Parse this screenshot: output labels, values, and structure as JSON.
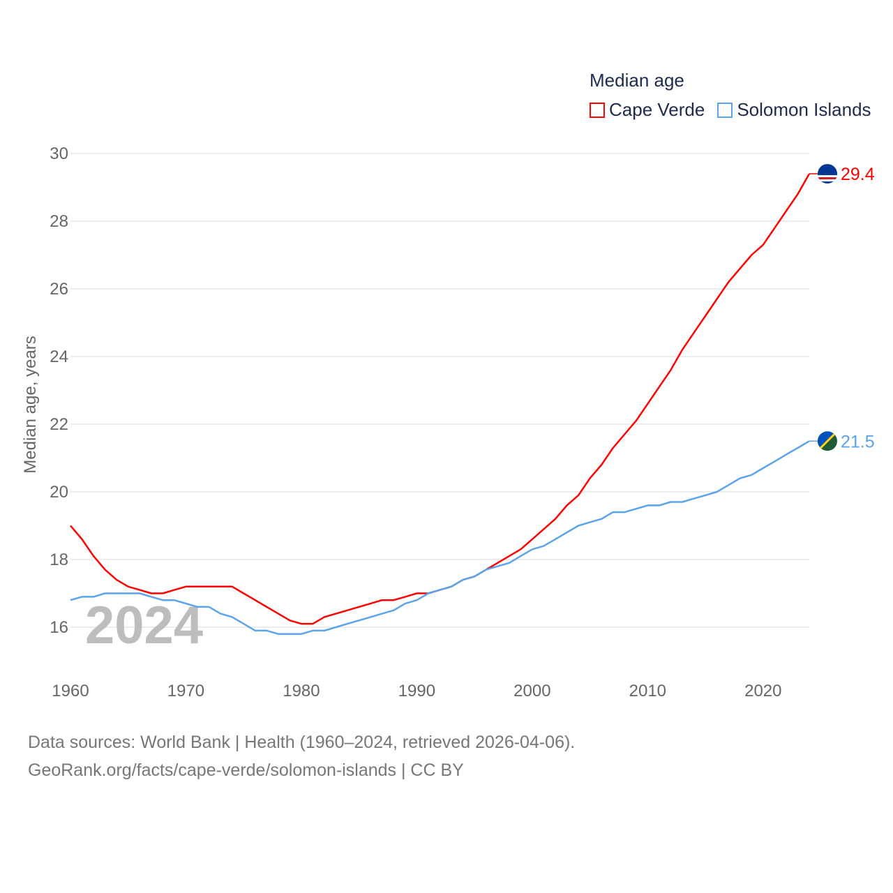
{
  "chart_data": {
    "type": "line",
    "title": "Median age",
    "xlabel": "",
    "ylabel": "Median age, years",
    "xlim": [
      1960,
      2024
    ],
    "ylim": [
      15,
      30
    ],
    "yticks": [
      16,
      18,
      20,
      22,
      24,
      26,
      28,
      30
    ],
    "xticks": [
      1960,
      1970,
      1980,
      1990,
      2000,
      2010,
      2020
    ],
    "grid": true,
    "legend_position": "top-right",
    "watermark_year": "2024",
    "x_start": 1960,
    "series": [
      {
        "name": "Cape Verde",
        "color": "#ff0000",
        "end_label": "29.4",
        "values": [
          19.0,
          18.6,
          18.1,
          17.7,
          17.4,
          17.2,
          17.1,
          17.0,
          17.0,
          17.1,
          17.2,
          17.2,
          17.2,
          17.2,
          17.2,
          17.0,
          16.8,
          16.6,
          16.4,
          16.2,
          16.1,
          16.1,
          16.3,
          16.4,
          16.5,
          16.6,
          16.7,
          16.8,
          16.8,
          16.9,
          17.0,
          17.0,
          17.1,
          17.2,
          17.4,
          17.5,
          17.7,
          17.9,
          18.1,
          18.3,
          18.6,
          18.9,
          19.2,
          19.6,
          19.9,
          20.4,
          20.8,
          21.3,
          21.7,
          22.1,
          22.6,
          23.1,
          23.6,
          24.2,
          24.7,
          25.2,
          25.7,
          26.2,
          26.6,
          27.0,
          27.3,
          27.8,
          28.3,
          28.8,
          29.4
        ]
      },
      {
        "name": "Solomon Islands",
        "color": "#5ba4ec",
        "end_label": "21.5",
        "values": [
          16.8,
          16.9,
          16.9,
          17.0,
          17.0,
          17.0,
          17.0,
          16.9,
          16.8,
          16.8,
          16.7,
          16.6,
          16.6,
          16.4,
          16.3,
          16.1,
          15.9,
          15.9,
          15.8,
          15.8,
          15.8,
          15.9,
          15.9,
          16.0,
          16.1,
          16.2,
          16.3,
          16.4,
          16.5,
          16.7,
          16.8,
          17.0,
          17.1,
          17.2,
          17.4,
          17.5,
          17.7,
          17.8,
          17.9,
          18.1,
          18.3,
          18.4,
          18.6,
          18.8,
          19.0,
          19.1,
          19.2,
          19.4,
          19.4,
          19.5,
          19.6,
          19.6,
          19.7,
          19.7,
          19.8,
          19.9,
          20.0,
          20.2,
          20.4,
          20.5,
          20.7,
          20.9,
          21.1,
          21.3,
          21.5
        ]
      }
    ]
  },
  "footer": {
    "line1": "Data sources: World Bank | Health (1960–2024, retrieved 2026-04-06).",
    "line2": "GeoRank.org/facts/cape-verde/solomon-islands | CC BY"
  }
}
